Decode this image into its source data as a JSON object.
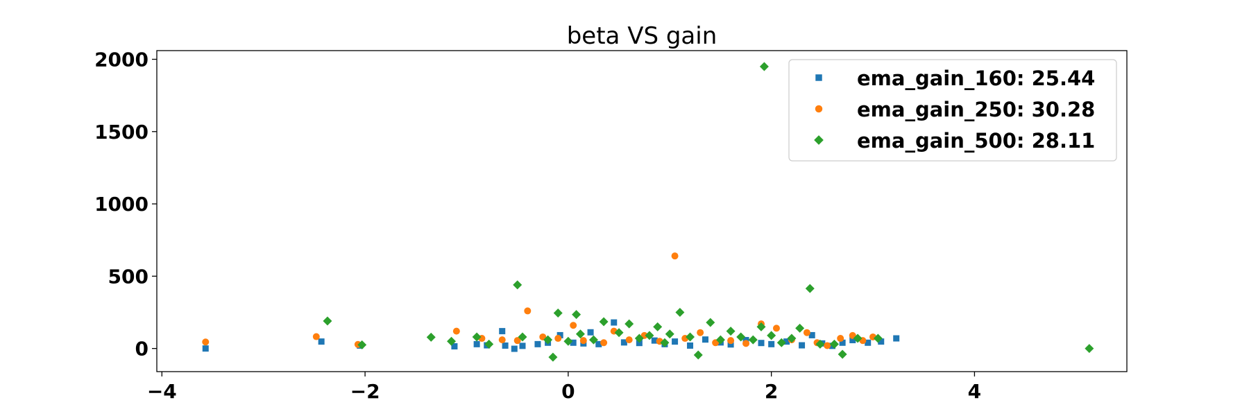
{
  "chart_data": {
    "type": "scatter",
    "title": "beta VS gain",
    "xlabel": "",
    "ylabel": "",
    "xlim": [
      -4.05,
      5.5
    ],
    "ylim": [
      -160,
      2060
    ],
    "xticks": [
      -4,
      -2,
      0,
      2,
      4
    ],
    "xtick_labels": [
      "−4",
      "−2",
      "0",
      "2",
      "4"
    ],
    "yticks": [
      0,
      500,
      1000,
      1500,
      2000
    ],
    "ytick_labels": [
      "0",
      "500",
      "1000",
      "1500",
      "2000"
    ],
    "grid": false,
    "legend_position": "top-right",
    "series": [
      {
        "name": "ema_gain_160: 25.44",
        "color": "#1f77b4",
        "marker": "square",
        "points": [
          [
            -3.57,
            0
          ],
          [
            -2.43,
            48
          ],
          [
            -2.05,
            20
          ],
          [
            -1.12,
            15
          ],
          [
            -0.9,
            30
          ],
          [
            -0.8,
            22
          ],
          [
            -0.65,
            120
          ],
          [
            -0.62,
            20
          ],
          [
            -0.53,
            -2
          ],
          [
            -0.45,
            18
          ],
          [
            -0.3,
            30
          ],
          [
            -0.2,
            40
          ],
          [
            -0.08,
            92
          ],
          [
            0.05,
            40
          ],
          [
            0.15,
            35
          ],
          [
            0.22,
            112
          ],
          [
            0.3,
            30
          ],
          [
            0.45,
            180
          ],
          [
            0.55,
            42
          ],
          [
            0.7,
            38
          ],
          [
            0.85,
            55
          ],
          [
            0.95,
            30
          ],
          [
            1.05,
            48
          ],
          [
            1.2,
            20
          ],
          [
            1.35,
            62
          ],
          [
            1.5,
            42
          ],
          [
            1.6,
            28
          ],
          [
            1.75,
            58
          ],
          [
            1.9,
            38
          ],
          [
            2.0,
            30
          ],
          [
            2.15,
            48
          ],
          [
            2.3,
            22
          ],
          [
            2.4,
            92
          ],
          [
            2.5,
            35
          ],
          [
            2.6,
            18
          ],
          [
            2.7,
            40
          ],
          [
            2.8,
            58
          ],
          [
            2.95,
            40
          ],
          [
            3.08,
            48
          ],
          [
            3.23,
            70
          ]
        ]
      },
      {
        "name": "ema_gain_250: 30.28",
        "color": "#ff7f0e",
        "marker": "circle",
        "points": [
          [
            -3.57,
            45
          ],
          [
            -2.48,
            82
          ],
          [
            -2.07,
            28
          ],
          [
            -1.1,
            120
          ],
          [
            -0.85,
            70
          ],
          [
            -0.65,
            60
          ],
          [
            -0.5,
            55
          ],
          [
            -0.4,
            260
          ],
          [
            -0.25,
            80
          ],
          [
            -0.1,
            70
          ],
          [
            0.05,
            160
          ],
          [
            0.15,
            55
          ],
          [
            0.35,
            40
          ],
          [
            0.45,
            120
          ],
          [
            0.6,
            60
          ],
          [
            0.75,
            90
          ],
          [
            0.9,
            50
          ],
          [
            1.05,
            640
          ],
          [
            1.15,
            70
          ],
          [
            1.3,
            110
          ],
          [
            1.45,
            40
          ],
          [
            1.6,
            55
          ],
          [
            1.75,
            35
          ],
          [
            1.9,
            170
          ],
          [
            2.05,
            140
          ],
          [
            2.2,
            60
          ],
          [
            2.35,
            110
          ],
          [
            2.45,
            40
          ],
          [
            2.55,
            20
          ],
          [
            2.68,
            70
          ],
          [
            2.8,
            90
          ],
          [
            2.9,
            55
          ],
          [
            3.0,
            80
          ]
        ]
      },
      {
        "name": "ema_gain_500: 28.11",
        "color": "#2ca02c",
        "marker": "diamond",
        "points": [
          [
            -2.37,
            190
          ],
          [
            -2.03,
            25
          ],
          [
            -1.35,
            78
          ],
          [
            -1.15,
            50
          ],
          [
            -0.9,
            80
          ],
          [
            -0.78,
            30
          ],
          [
            -0.5,
            440
          ],
          [
            -0.45,
            80
          ],
          [
            -0.2,
            60
          ],
          [
            -0.15,
            -60
          ],
          [
            -0.1,
            245
          ],
          [
            0.0,
            50
          ],
          [
            0.08,
            235
          ],
          [
            0.12,
            100
          ],
          [
            0.25,
            60
          ],
          [
            0.35,
            185
          ],
          [
            0.5,
            110
          ],
          [
            0.6,
            170
          ],
          [
            0.7,
            70
          ],
          [
            0.8,
            90
          ],
          [
            0.88,
            150
          ],
          [
            0.95,
            40
          ],
          [
            1.0,
            100
          ],
          [
            1.1,
            250
          ],
          [
            1.2,
            80
          ],
          [
            1.28,
            -45
          ],
          [
            1.4,
            180
          ],
          [
            1.5,
            60
          ],
          [
            1.6,
            120
          ],
          [
            1.7,
            80
          ],
          [
            1.82,
            60
          ],
          [
            1.9,
            150
          ],
          [
            1.93,
            1950
          ],
          [
            2.0,
            90
          ],
          [
            2.1,
            40
          ],
          [
            2.2,
            70
          ],
          [
            2.28,
            140
          ],
          [
            2.38,
            415
          ],
          [
            2.48,
            30
          ],
          [
            2.62,
            30
          ],
          [
            2.7,
            -40
          ],
          [
            2.85,
            70
          ],
          [
            3.05,
            70
          ],
          [
            5.13,
            0
          ]
        ]
      }
    ]
  }
}
